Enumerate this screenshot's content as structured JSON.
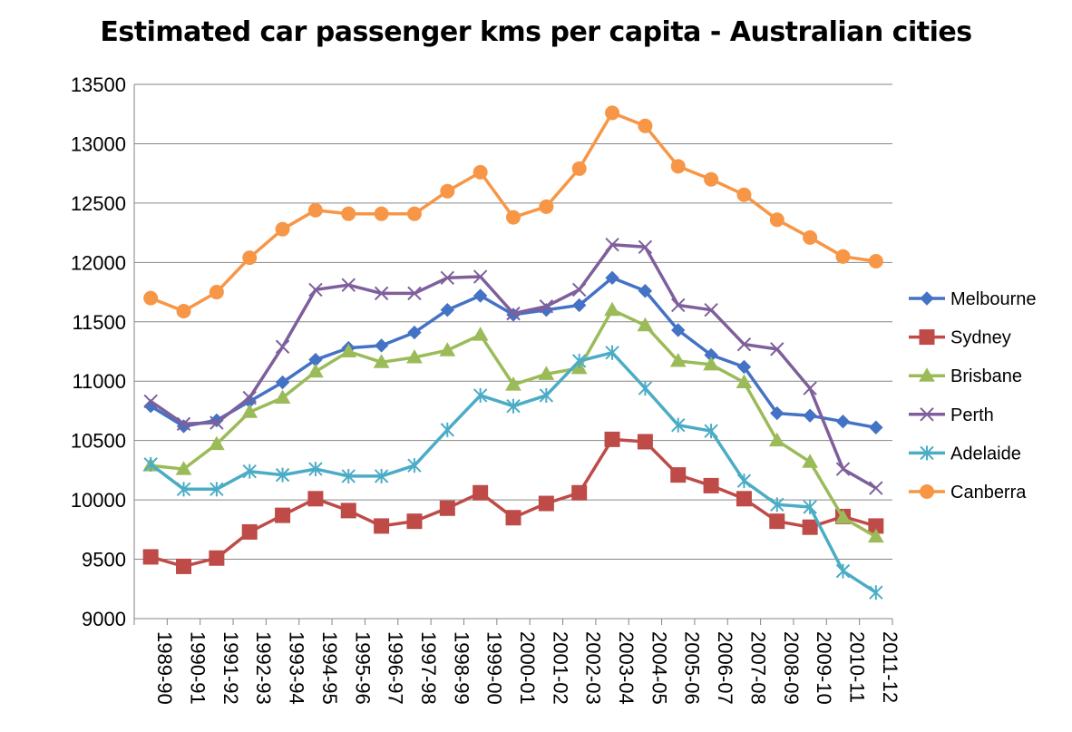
{
  "chart_data": {
    "type": "line",
    "title": "Estimated car passenger kms per capita - Australian cities",
    "xlabel": "",
    "ylabel": "",
    "ylim": [
      9000,
      13500
    ],
    "ytick_step": 500,
    "grid": "horizontal",
    "legend_position": "right",
    "categories": [
      "1989-90",
      "1990-91",
      "1991-92",
      "1992-93",
      "1993-94",
      "1994-95",
      "1995-96",
      "1996-97",
      "1997-98",
      "1998-99",
      "1999-00",
      "2000-01",
      "2001-02",
      "2002-03",
      "2003-04",
      "2004-05",
      "2005-06",
      "2006-07",
      "2007-08",
      "2008-09",
      "2009-10",
      "2010-11",
      "2011-12"
    ],
    "series": [
      {
        "name": "Melbourne",
        "color": "#4472C4",
        "marker": "diamond",
        "values": [
          10790,
          10620,
          10670,
          10830,
          10990,
          11180,
          11280,
          11300,
          11410,
          11600,
          11720,
          11560,
          11600,
          11640,
          11870,
          11760,
          11430,
          11220,
          11120,
          10730,
          10710,
          10660,
          10610
        ]
      },
      {
        "name": "Sydney",
        "color": "#BE4B48",
        "marker": "square",
        "values": [
          9520,
          9440,
          9510,
          9730,
          9870,
          10010,
          9910,
          9780,
          9820,
          9930,
          10060,
          9850,
          9970,
          10060,
          10510,
          10490,
          10210,
          10120,
          10010,
          9820,
          9770,
          9860,
          9780
        ]
      },
      {
        "name": "Brisbane",
        "color": "#9BBB59",
        "marker": "triangle",
        "values": [
          10290,
          10260,
          10470,
          10740,
          10860,
          11080,
          11250,
          11160,
          11200,
          11260,
          11390,
          10970,
          11060,
          11110,
          11600,
          11470,
          11170,
          11140,
          10990,
          10500,
          10320,
          9850,
          9690
        ]
      },
      {
        "name": "Perth",
        "color": "#7E5F9B",
        "marker": "x",
        "values": [
          10830,
          10640,
          10650,
          10860,
          11290,
          11770,
          11810,
          11740,
          11740,
          11870,
          11880,
          11570,
          11630,
          11770,
          12150,
          12130,
          11640,
          11600,
          11310,
          11270,
          10940,
          10260,
          10100
        ]
      },
      {
        "name": "Adelaide",
        "color": "#4BACC6",
        "marker": "star",
        "values": [
          10300,
          10090,
          10090,
          10240,
          10210,
          10260,
          10200,
          10200,
          10290,
          10590,
          10880,
          10790,
          10880,
          11170,
          11240,
          10940,
          10630,
          10580,
          10160,
          9960,
          9940,
          9400,
          9220
        ]
      },
      {
        "name": "Canberra",
        "color": "#F79646",
        "marker": "circle",
        "values": [
          11700,
          11590,
          11750,
          12040,
          12280,
          12440,
          12410,
          12410,
          12410,
          12600,
          12760,
          12380,
          12470,
          12790,
          13260,
          13150,
          12810,
          12700,
          12570,
          12360,
          12210,
          12050,
          12010
        ]
      }
    ]
  }
}
